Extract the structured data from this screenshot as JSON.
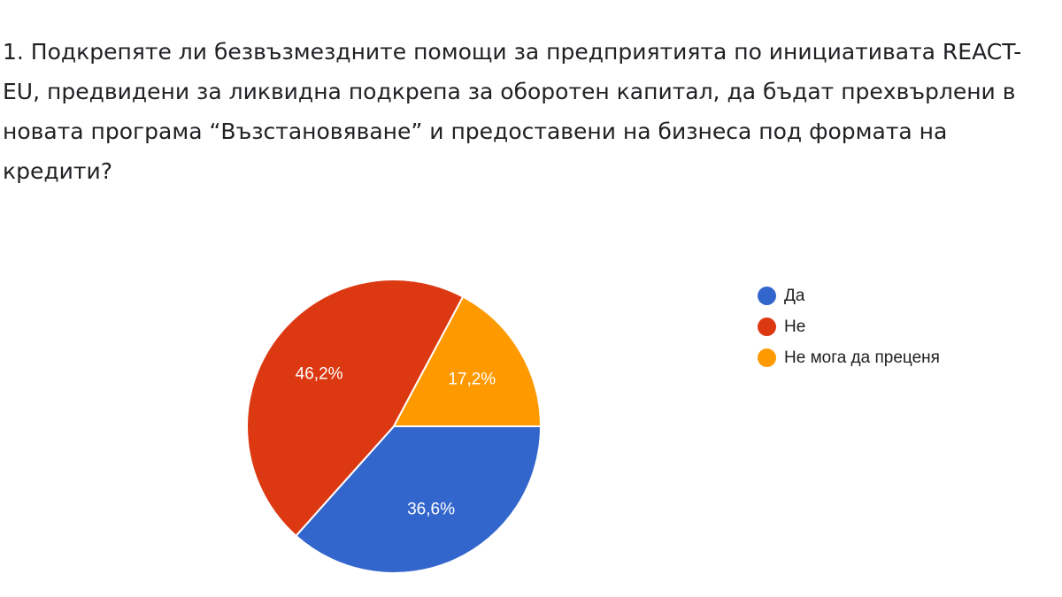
{
  "question": {
    "lines": [
      "1. Подкрепяте ли безвъзмездните помощи за предприятията по инициативата REACT-",
      "EU, предвидени за ликвидна подкрепа за оборотен капитал, да бъдат прехвърлени в",
      "новата програма “Възстановяване” и предоставени на бизнеса под формата на",
      "кредити?"
    ]
  },
  "chart_data": {
    "type": "pie",
    "title": "",
    "legend_position": "right",
    "series": [
      {
        "name": "Да",
        "value": 36.6,
        "label": "36,6%",
        "color": "#3366cc"
      },
      {
        "name": "Не",
        "value": 46.2,
        "label": "46,2%",
        "color": "#dc3912"
      },
      {
        "name": "Не мога да преценя",
        "value": 17.2,
        "label": "17,2%",
        "color": "#ff9900"
      }
    ]
  }
}
